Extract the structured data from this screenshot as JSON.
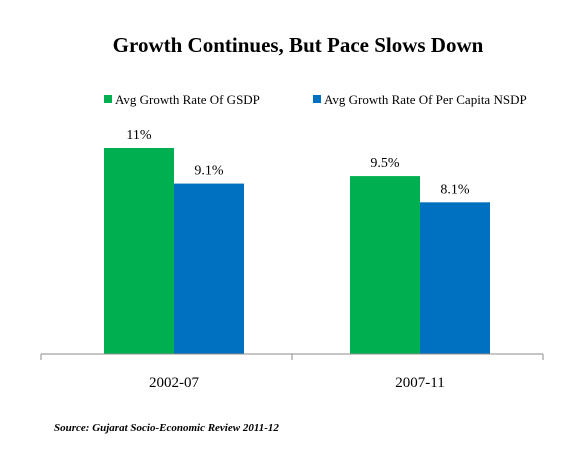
{
  "chart_data": {
    "type": "bar",
    "title": "Growth Continues, But Pace Slows Down",
    "categories": [
      "2002-07",
      "2007-11"
    ],
    "series": [
      {
        "name": "Avg Growth Rate Of GSDP",
        "values": [
          11,
          9.5
        ],
        "labels": [
          "11%",
          "9.5%"
        ],
        "color": "#00b050"
      },
      {
        "name": "Avg Growth Rate Of Per Capita NSDP",
        "values": [
          9.1,
          8.1
        ],
        "labels": [
          "9.1%",
          "8.1%"
        ],
        "color": "#0070c0"
      }
    ],
    "ylim": [
      0,
      12
    ],
    "grid": false,
    "legend": "top"
  },
  "source": "Source: Gujarat Socio-Economic Review 2011-12"
}
